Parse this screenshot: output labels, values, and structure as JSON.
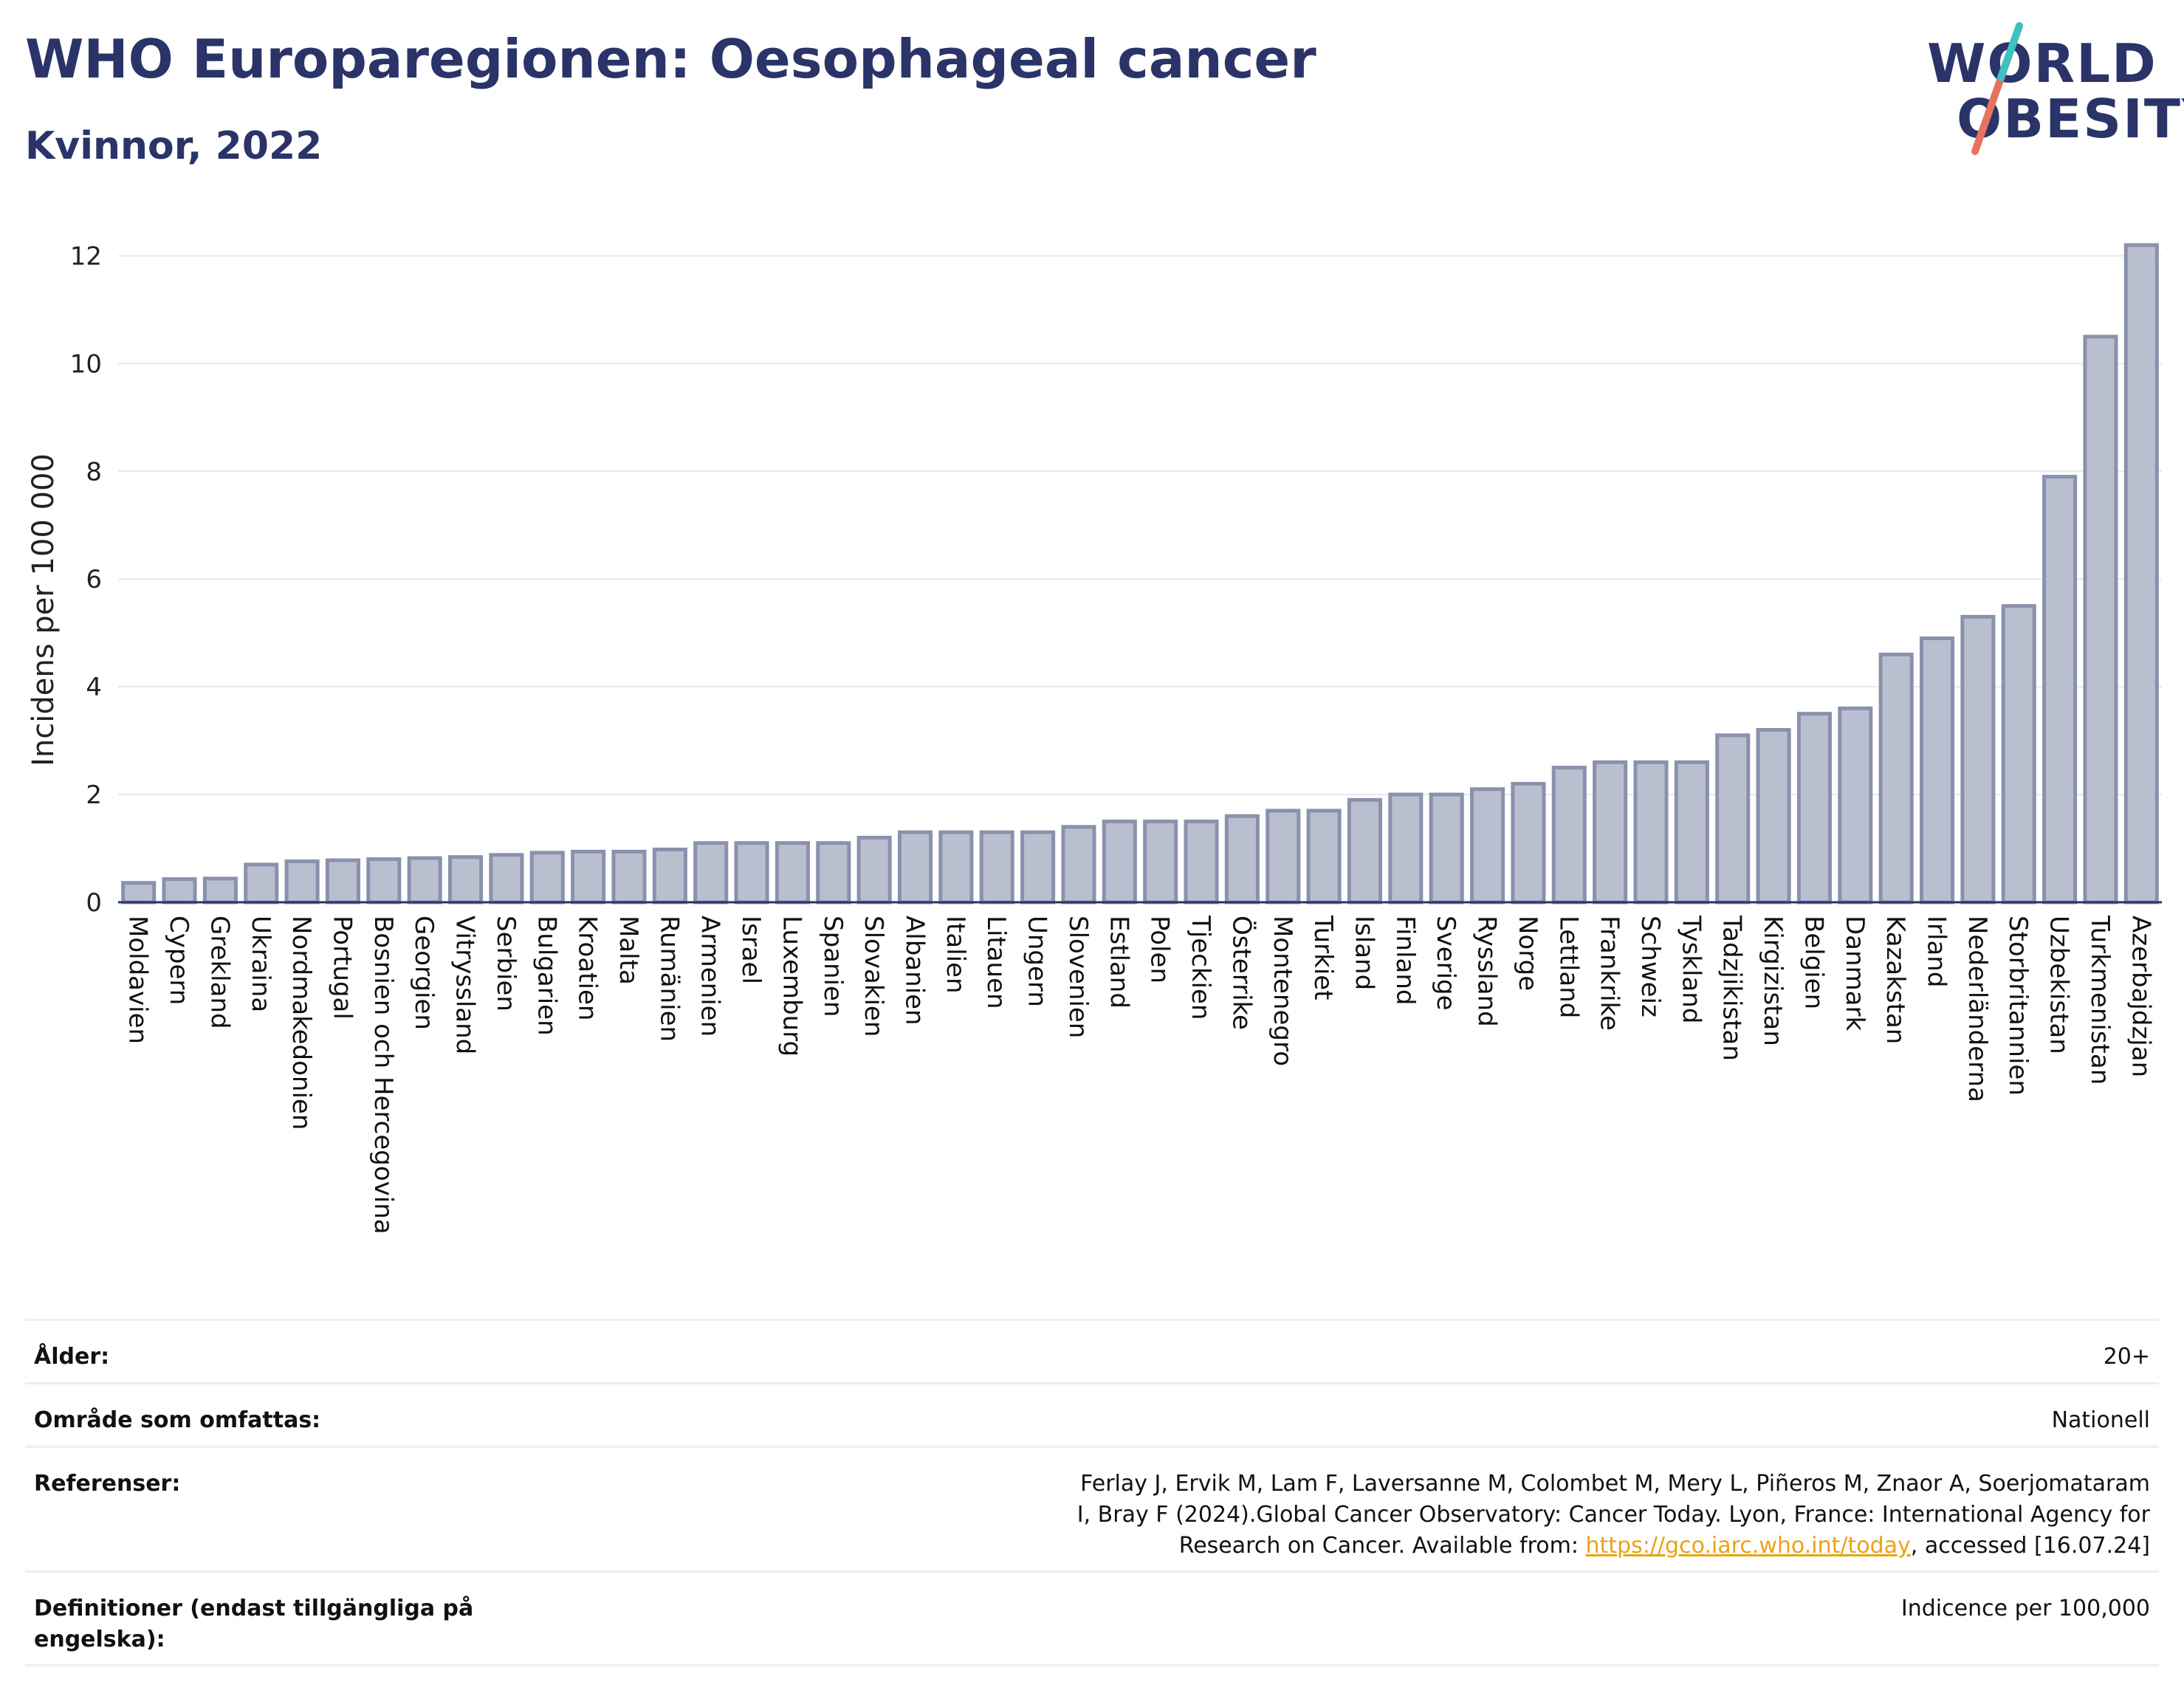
{
  "title": "WHO Europaregionen: Oesophageal cancer",
  "subtitle": "Kvinnor, 2022",
  "logo": {
    "line1": "WORLD",
    "line2": "OBESITY"
  },
  "chart_data": {
    "type": "bar",
    "ylabel": "Incidens per 100 000",
    "ylim": [
      0,
      12.5
    ],
    "yticks": [
      0,
      2,
      4,
      6,
      8,
      10,
      12
    ],
    "grid": true,
    "bar_color": "#b9bfcf",
    "bar_edge_color": "#8a91ad",
    "categories": [
      "Moldavien",
      "Cypern",
      "Grekland",
      "Ukraina",
      "Nordmakedonien",
      "Portugal",
      "Bosnien och Hercegovina",
      "Georgien",
      "Vitryssland",
      "Serbien",
      "Bulgarien",
      "Kroatien",
      "Malta",
      "Rumänien",
      "Armenien",
      "Israel",
      "Luxemburg",
      "Spanien",
      "Slovakien",
      "Albanien",
      "Italien",
      "Litauen",
      "Ungern",
      "Slovenien",
      "Estland",
      "Polen",
      "Tjeckien",
      "Österrike",
      "Montenegro",
      "Turkiet",
      "Island",
      "Finland",
      "Sverige",
      "Ryssland",
      "Norge",
      "Lettland",
      "Frankrike",
      "Schweiz",
      "Tyskland",
      "Tadzjikistan",
      "Kirgizistan",
      "Belgien",
      "Danmark",
      "Kazakstan",
      "Irland",
      "Nederländerna",
      "Storbritannien",
      "Uzbekistan",
      "Turkmenistan",
      "Azerbajdzjan"
    ],
    "values": [
      0.36,
      0.43,
      0.44,
      0.7,
      0.76,
      0.78,
      0.8,
      0.82,
      0.84,
      0.88,
      0.92,
      0.94,
      0.94,
      0.98,
      1.1,
      1.1,
      1.1,
      1.1,
      1.2,
      1.3,
      1.3,
      1.3,
      1.3,
      1.4,
      1.5,
      1.5,
      1.5,
      1.6,
      1.7,
      1.7,
      1.9,
      2.0,
      2.0,
      2.1,
      2.2,
      2.5,
      2.6,
      2.6,
      2.6,
      3.1,
      3.2,
      3.5,
      3.6,
      4.6,
      4.9,
      5.3,
      5.5,
      7.9,
      10.5,
      12.2
    ]
  },
  "info": [
    {
      "label": "Ålder:",
      "value": "20+"
    },
    {
      "label": "Område som omfattas:",
      "value": "Nationell"
    },
    {
      "label": "Referenser:",
      "value": "Ferlay J, Ervik M, Lam F, Laversanne M, Colombet M, Mery L, Piñeros M, Znaor A, Soerjomataram I, Bray F (2024).Global Cancer Observatory: Cancer Today. Lyon, France: International Agency for Research on Cancer. Available from: ",
      "link": "https://gco.iarc.who.int/today",
      "suffix": ", accessed [16.07.24]"
    },
    {
      "label": "Definitioner (endast tillgängliga på engelska):",
      "value": "Indicence per 100,000"
    }
  ]
}
